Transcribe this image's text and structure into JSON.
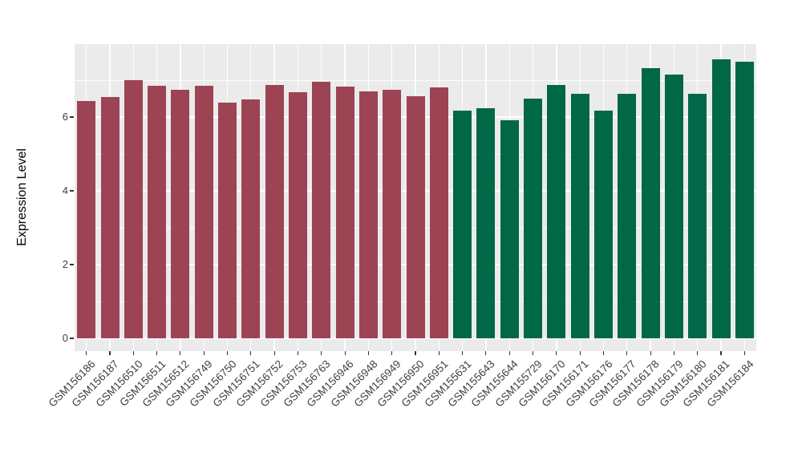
{
  "chart_data": {
    "type": "bar",
    "title": "",
    "xlabel": "",
    "ylabel": "Expression Level",
    "ylim": [
      -0.35,
      7.98
    ],
    "yticks": [
      0,
      2,
      4,
      6
    ],
    "yticks_minor": [
      1,
      3,
      5,
      7
    ],
    "grid": "on",
    "legend": "none",
    "panel_bg": "#EBEBEB",
    "grid_color": "#FFFFFF",
    "tick_color": "#333333",
    "axis_text_color": "#404040",
    "group_colors": {
      "red": "#9C4454",
      "green": "#006747"
    },
    "categories": [
      "GSM156186",
      "GSM156187",
      "GSM156510",
      "GSM156511",
      "GSM156512",
      "GSM156749",
      "GSM156750",
      "GSM156751",
      "GSM156752",
      "GSM156753",
      "GSM156763",
      "GSM156946",
      "GSM156948",
      "GSM156949",
      "GSM156950",
      "GSM156951",
      "GSM155631",
      "GSM155643",
      "GSM155644",
      "GSM155729",
      "GSM156170",
      "GSM156171",
      "GSM156176",
      "GSM156177",
      "GSM156178",
      "GSM156179",
      "GSM156180",
      "GSM156181",
      "GSM156184"
    ],
    "values": [
      6.43,
      6.54,
      7.01,
      6.85,
      6.73,
      6.85,
      6.39,
      6.49,
      6.86,
      6.68,
      6.96,
      6.83,
      6.7,
      6.74,
      6.57,
      6.81,
      6.17,
      6.25,
      5.91,
      6.51,
      6.87,
      6.63,
      6.18,
      6.64,
      7.33,
      7.15,
      6.64,
      7.57,
      7.5
    ],
    "groups": [
      "red",
      "red",
      "red",
      "red",
      "red",
      "red",
      "red",
      "red",
      "red",
      "red",
      "red",
      "red",
      "red",
      "red",
      "red",
      "red",
      "green",
      "green",
      "green",
      "green",
      "green",
      "green",
      "green",
      "green",
      "green",
      "green",
      "green",
      "green",
      "green"
    ]
  }
}
